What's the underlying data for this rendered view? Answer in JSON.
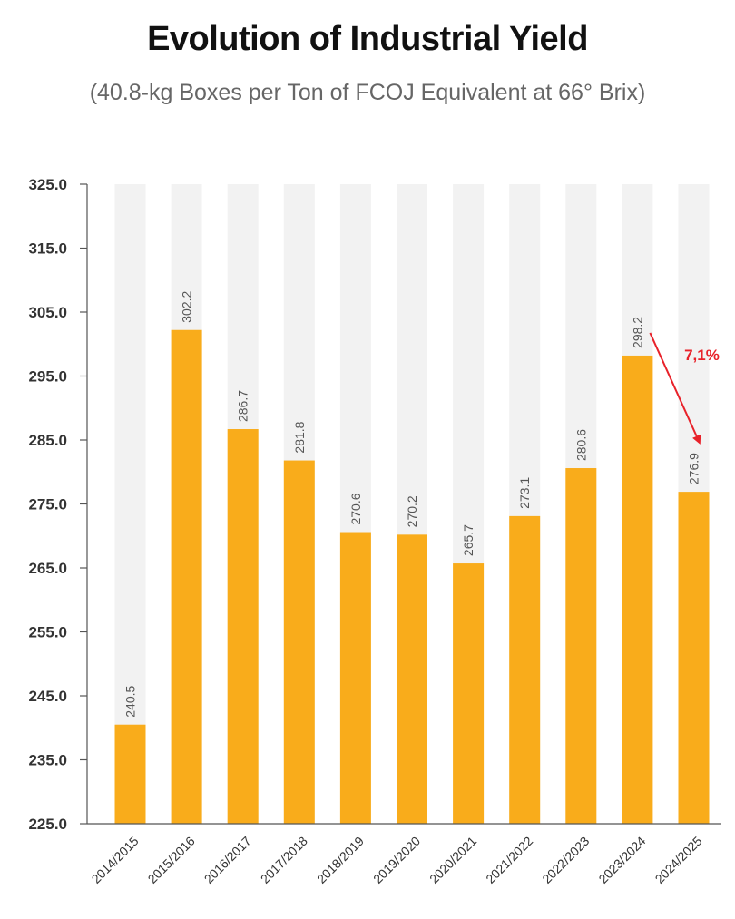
{
  "chart_data": {
    "type": "bar",
    "title": "Evolution of Industrial Yield",
    "subtitle": "(40.8-kg Boxes per Ton of FCOJ Equivalent at 66° Brix)",
    "xlabel": "",
    "ylabel": "",
    "ylim": [
      225.0,
      325.0
    ],
    "yticks": [
      "225.0",
      "235.0",
      "245.0",
      "255.0",
      "265.0",
      "275.0",
      "285.0",
      "295.0",
      "305.0",
      "315.0",
      "325.0"
    ],
    "categories": [
      "2014/2015",
      "2015/2016",
      "2016/2017",
      "2017/2018",
      "2018/2019",
      "2019/2020",
      "2020/2021",
      "2021/2022",
      "2022/2023",
      "2023/2024",
      "2024/2025"
    ],
    "values": [
      240.5,
      302.2,
      286.7,
      281.8,
      270.6,
      270.2,
      265.7,
      273.1,
      280.6,
      298.2,
      276.9
    ],
    "value_labels": [
      "240.5",
      "302.2",
      "286.7",
      "281.8",
      "270.6",
      "270.2",
      "265.7",
      "273.1",
      "280.6",
      "298.2",
      "276.9"
    ],
    "annotation": {
      "text": "7,1%",
      "from_category": "2023/2024",
      "to_category": "2024/2025"
    },
    "colors": {
      "bar": "#F9AC1B",
      "track": "#F2F2F2",
      "annotation": "#E8222A",
      "axis": "#555555"
    },
    "grid": false,
    "legend": "none"
  }
}
